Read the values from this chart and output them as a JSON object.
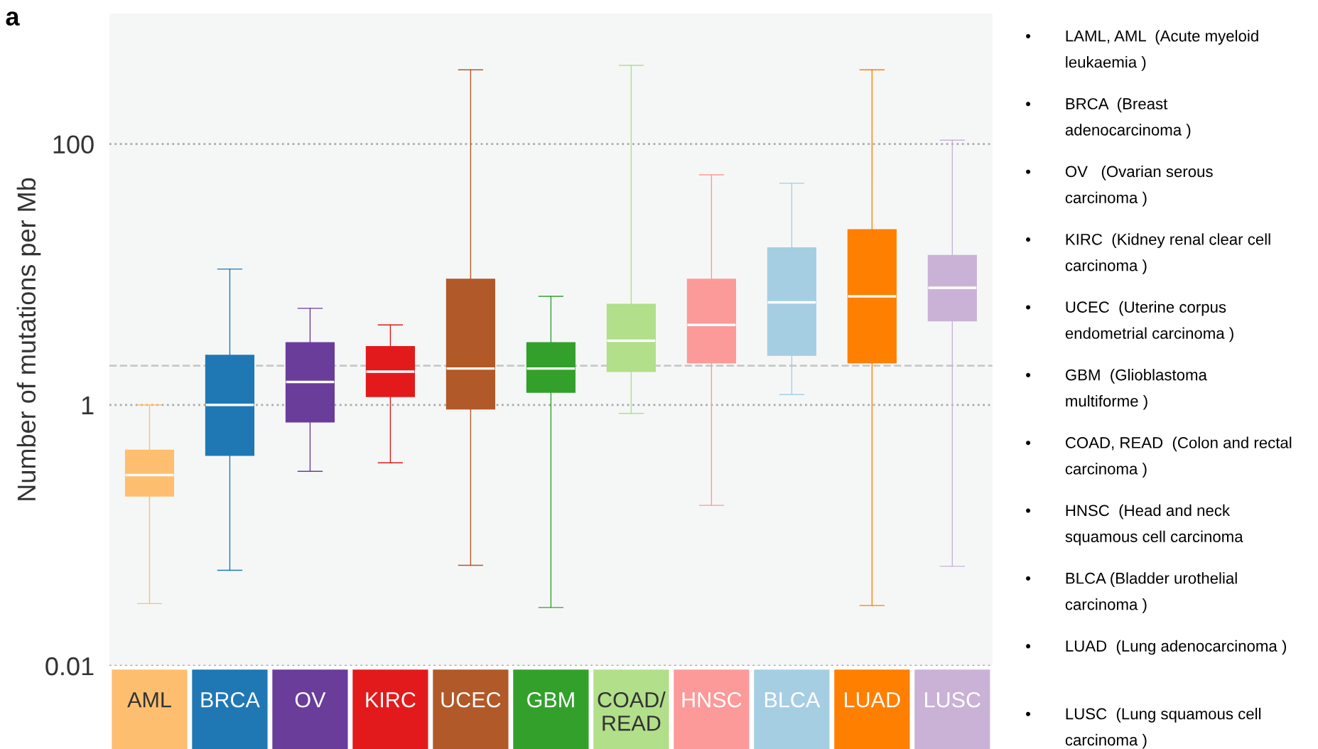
{
  "chart_data": {
    "type": "box",
    "ylabel": "Number of mutations per Mb",
    "log": true,
    "ylim": [
      0.01,
      1000
    ],
    "yticks": [
      0.01,
      1,
      100
    ],
    "grid": "y",
    "categories": [
      "AML",
      "BRCA",
      "OV",
      "KIRC",
      "UCEC",
      "GBM",
      "COAD/\nREAD",
      "HNSC",
      "BLCA",
      "LUAD",
      "LUSC"
    ],
    "colors": [
      "#fdbf6f",
      "#1f78b4",
      "#6a3d9a",
      "#e31a1c",
      "#b15928",
      "#33a02c",
      "#b2df8a",
      "#fb9a99",
      "#a6cee3",
      "#ff7f00",
      "#cab2d6"
    ],
    "boxes": [
      {
        "low": 0.03,
        "q1": 0.2,
        "median": 0.29,
        "q3": 0.45,
        "high": 1
      },
      {
        "low": 0.054,
        "q1": 0.41,
        "median": 1.0,
        "q3": 2.4,
        "high": 11
      },
      {
        "low": 0.31,
        "q1": 0.74,
        "median": 1.5,
        "q3": 3.0,
        "high": 5.5
      },
      {
        "low": 0.36,
        "q1": 1.16,
        "median": 1.8,
        "q3": 2.8,
        "high": 4.1
      },
      {
        "low": 0.059,
        "q1": 0.93,
        "median": 1.9,
        "q3": 9.2,
        "high": 370
      },
      {
        "low": 0.028,
        "q1": 1.25,
        "median": 1.9,
        "q3": 3.0,
        "high": 6.8
      },
      {
        "low": 0.86,
        "q1": 1.8,
        "median": 3.1,
        "q3": 5.9,
        "high": 400
      },
      {
        "low": 0.17,
        "q1": 2.1,
        "median": 4.1,
        "q3": 9.2,
        "high": 58
      },
      {
        "low": 1.2,
        "q1": 2.4,
        "median": 6.1,
        "q3": 16,
        "high": 50
      },
      {
        "low": 0.029,
        "q1": 2.1,
        "median": 6.8,
        "q3": 22,
        "high": 370
      },
      {
        "low": 0.058,
        "q1": 4.4,
        "median": 7.9,
        "q3": 14,
        "high": 107
      }
    ],
    "ref_lines": [
      {
        "axis": "y",
        "value": 2,
        "line_style": "dashed",
        "color": "#c8c8c8"
      }
    ],
    "annotations": [
      "a",
      "•",
      "LAML, AML  (Acute myeloid\nleukaemia )",
      "•",
      "BRCA  (Breast\nadenocarcinoma )",
      "•",
      "OV   (Ovarian serous\ncarcinoma )",
      "•",
      "KIRC  (Kidney renal clear cell\ncarcinoma )",
      "•",
      "UCEC  (Uterine corpus\nendometrial carcinoma )",
      "•",
      "GBM  (Glioblastoma\nmultiforme )",
      "•",
      "COAD, READ  (Colon and rectal\ncarcinoma )",
      "•",
      "HNSC  (Head and neck\nsquamous cell carcinoma",
      "•",
      "BLCA (Bladder urothelial\ncarcinoma )",
      "•",
      "LUAD  (Lung adenocarcinoma )",
      "•",
      "LUSC  (Lung squamous cell\ncarcinoma )"
    ]
  }
}
